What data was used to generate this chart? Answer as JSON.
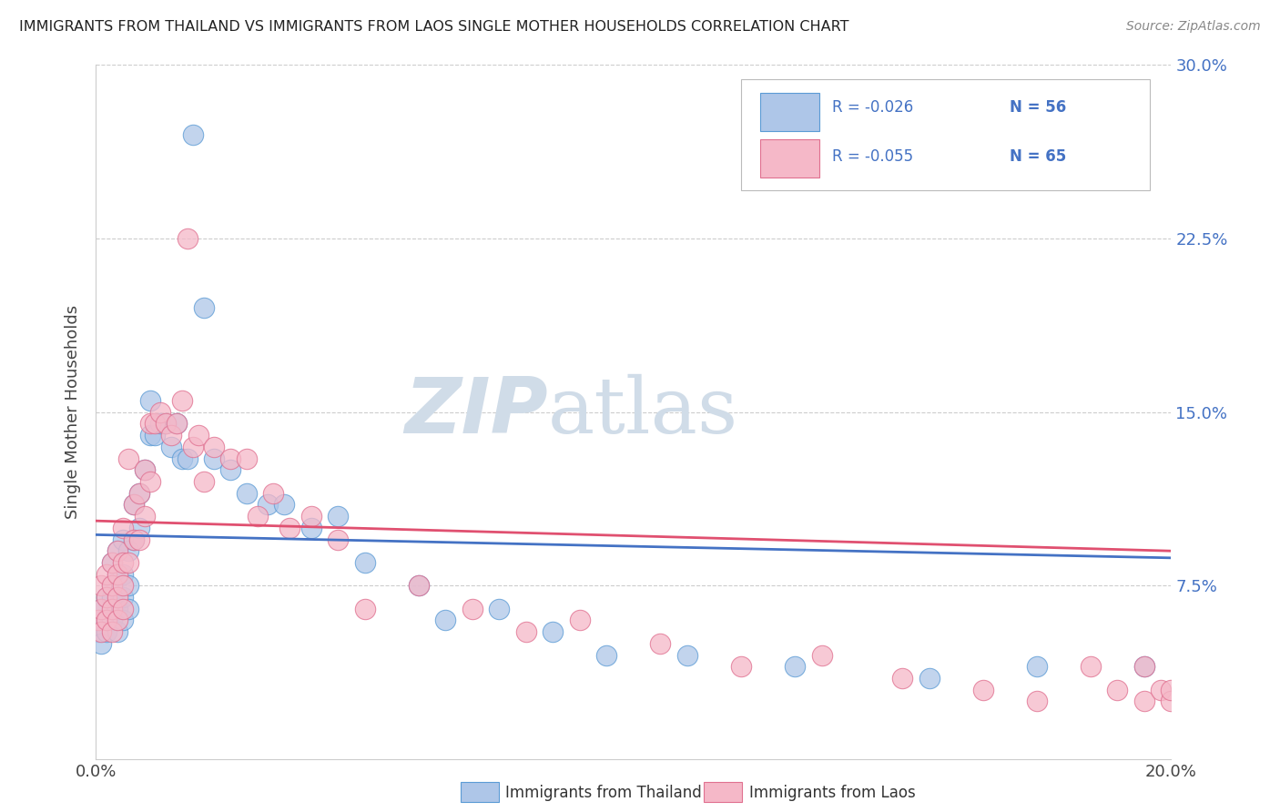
{
  "title": "IMMIGRANTS FROM THAILAND VS IMMIGRANTS FROM LAOS SINGLE MOTHER HOUSEHOLDS CORRELATION CHART",
  "source": "Source: ZipAtlas.com",
  "ylabel": "Single Mother Households",
  "legend_label_blue": "Immigrants from Thailand",
  "legend_label_pink": "Immigrants from Laos",
  "legend_r_blue": "R = -0.026",
  "legend_n_blue": "N = 56",
  "legend_r_pink": "R = -0.055",
  "legend_n_pink": "N = 65",
  "color_blue_fill": "#aec6e8",
  "color_pink_fill": "#f5b8c8",
  "color_blue_edge": "#5b9bd5",
  "color_pink_edge": "#e07090",
  "color_blue_line": "#4472c4",
  "color_pink_line": "#e05070",
  "color_text_blue": "#4472c4",
  "color_grid": "#cccccc",
  "watermark_color": "#d0dce8",
  "xlim": [
    0.0,
    0.2
  ],
  "ylim": [
    0.0,
    0.3
  ],
  "ytick_vals": [
    0.075,
    0.15,
    0.225,
    0.3
  ],
  "ytick_labels": [
    "7.5%",
    "15.0%",
    "22.5%",
    "30.0%"
  ],
  "blue_x": [
    0.0005,
    0.001,
    0.001,
    0.002,
    0.002,
    0.002,
    0.003,
    0.003,
    0.003,
    0.003,
    0.004,
    0.004,
    0.004,
    0.004,
    0.004,
    0.005,
    0.005,
    0.005,
    0.005,
    0.006,
    0.006,
    0.006,
    0.007,
    0.007,
    0.008,
    0.008,
    0.009,
    0.01,
    0.01,
    0.011,
    0.012,
    0.013,
    0.014,
    0.015,
    0.016,
    0.017,
    0.018,
    0.02,
    0.022,
    0.025,
    0.028,
    0.032,
    0.035,
    0.04,
    0.045,
    0.05,
    0.06,
    0.065,
    0.075,
    0.085,
    0.095,
    0.11,
    0.13,
    0.155,
    0.175,
    0.195
  ],
  "blue_y": [
    0.055,
    0.05,
    0.065,
    0.06,
    0.07,
    0.055,
    0.06,
    0.07,
    0.075,
    0.085,
    0.055,
    0.065,
    0.07,
    0.08,
    0.09,
    0.06,
    0.07,
    0.08,
    0.095,
    0.065,
    0.075,
    0.09,
    0.095,
    0.11,
    0.1,
    0.115,
    0.125,
    0.14,
    0.155,
    0.14,
    0.145,
    0.145,
    0.135,
    0.145,
    0.13,
    0.13,
    0.27,
    0.195,
    0.13,
    0.125,
    0.115,
    0.11,
    0.11,
    0.1,
    0.105,
    0.085,
    0.075,
    0.06,
    0.065,
    0.055,
    0.045,
    0.045,
    0.04,
    0.035,
    0.04,
    0.04
  ],
  "pink_x": [
    0.0005,
    0.001,
    0.001,
    0.001,
    0.002,
    0.002,
    0.002,
    0.003,
    0.003,
    0.003,
    0.003,
    0.004,
    0.004,
    0.004,
    0.004,
    0.005,
    0.005,
    0.005,
    0.005,
    0.006,
    0.006,
    0.007,
    0.007,
    0.008,
    0.008,
    0.009,
    0.009,
    0.01,
    0.01,
    0.011,
    0.012,
    0.013,
    0.014,
    0.015,
    0.016,
    0.017,
    0.018,
    0.019,
    0.02,
    0.022,
    0.025,
    0.028,
    0.03,
    0.033,
    0.036,
    0.04,
    0.045,
    0.05,
    0.06,
    0.07,
    0.08,
    0.09,
    0.105,
    0.12,
    0.135,
    0.15,
    0.165,
    0.175,
    0.185,
    0.19,
    0.195,
    0.195,
    0.198,
    0.2,
    0.2
  ],
  "pink_y": [
    0.06,
    0.055,
    0.065,
    0.075,
    0.06,
    0.07,
    0.08,
    0.055,
    0.065,
    0.075,
    0.085,
    0.06,
    0.07,
    0.08,
    0.09,
    0.065,
    0.075,
    0.085,
    0.1,
    0.085,
    0.13,
    0.095,
    0.11,
    0.095,
    0.115,
    0.105,
    0.125,
    0.12,
    0.145,
    0.145,
    0.15,
    0.145,
    0.14,
    0.145,
    0.155,
    0.225,
    0.135,
    0.14,
    0.12,
    0.135,
    0.13,
    0.13,
    0.105,
    0.115,
    0.1,
    0.105,
    0.095,
    0.065,
    0.075,
    0.065,
    0.055,
    0.06,
    0.05,
    0.04,
    0.045,
    0.035,
    0.03,
    0.025,
    0.04,
    0.03,
    0.04,
    0.025,
    0.03,
    0.025,
    0.03
  ],
  "blue_trend": [
    0.0,
    0.2,
    0.097,
    0.087
  ],
  "pink_trend": [
    0.0,
    0.2,
    0.103,
    0.09
  ]
}
